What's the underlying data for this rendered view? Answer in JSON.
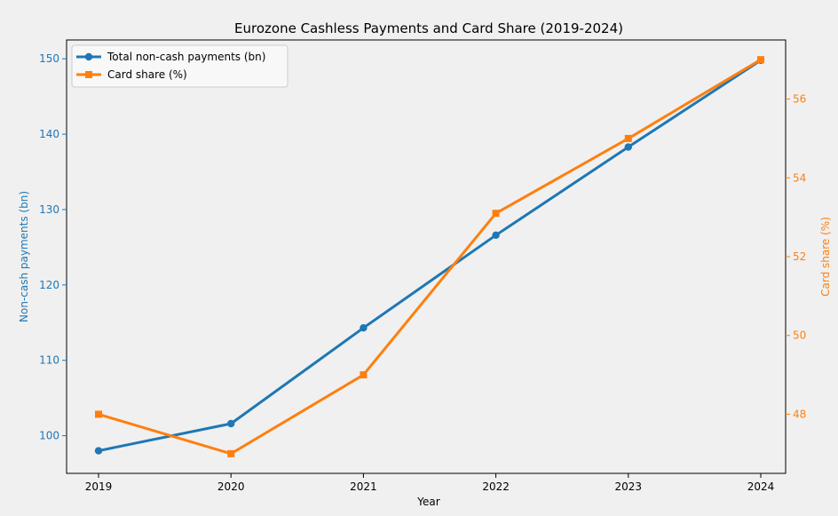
{
  "chart_data": {
    "type": "line",
    "title": "Eurozone Cashless Payments and Card Share (2019-2024)",
    "xlabel": "Year",
    "ylabel_left": "Non-cash payments (bn)",
    "ylabel_right": "Card share (%)",
    "categories": [
      "2019",
      "2020",
      "2021",
      "2022",
      "2023",
      "2024"
    ],
    "ylim_left": [
      95,
      152.5
    ],
    "yticks_left": [
      100,
      110,
      120,
      130,
      140,
      150
    ],
    "ylim_right": [
      46.5,
      57.5
    ],
    "yticks_right": [
      48,
      50,
      52,
      54,
      56
    ],
    "grid": false,
    "legend_position": "top-left",
    "series": [
      {
        "name": "Total non-cash payments (bn)",
        "axis": "left",
        "color": "#1f77b4",
        "marker": "circle",
        "values": [
          98.0,
          101.6,
          114.3,
          126.6,
          138.3,
          149.8
        ]
      },
      {
        "name": "Card share (%)",
        "axis": "right",
        "color": "#ff7f0e",
        "marker": "square",
        "values": [
          48.0,
          47.0,
          49.0,
          53.1,
          55.0,
          57.0
        ]
      }
    ],
    "colors": {
      "left_axis": "#1f77b4",
      "right_axis": "#ff7f0e"
    }
  }
}
